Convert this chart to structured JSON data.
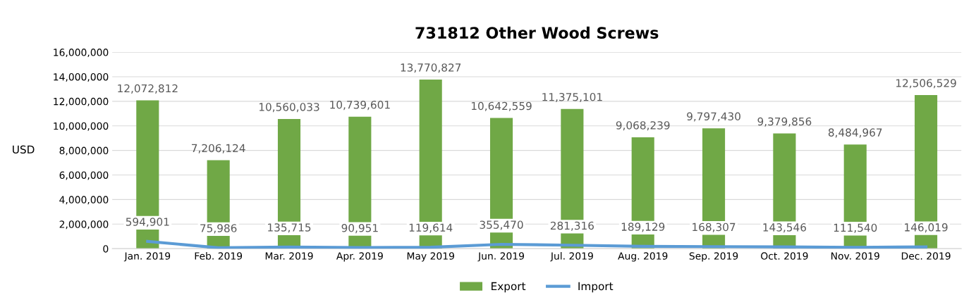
{
  "chart_data": {
    "type": "bar",
    "title": "731812 Other Wood Screws",
    "ylabel": "USD",
    "categories": [
      "Jan. 2019",
      "Feb. 2019",
      "Mar. 2019",
      "Apr. 2019",
      "May 2019",
      "Jun. 2019",
      "Jul. 2019",
      "Aug. 2019",
      "Sep. 2019",
      "Oct. 2019",
      "Nov. 2019",
      "Dec. 2019"
    ],
    "series": [
      {
        "name": "Export",
        "color": "#70a846",
        "values": [
          12072812,
          7206124,
          10560033,
          10739601,
          13770827,
          10642559,
          11375101,
          9068239,
          9797430,
          9379856,
          8484967,
          12506529
        ],
        "value_labels": [
          "12,072,812",
          "7,206,124",
          "10,560,033",
          "10,739,601",
          "13,770,827",
          "10,642,559",
          "11,375,101",
          "9,068,239",
          "9,797,430",
          "9,379,856",
          "8,484,967",
          "12,506,529"
        ]
      },
      {
        "name": "Import",
        "type": "line",
        "color": "#5b9bd5",
        "values": [
          594901,
          75986,
          135715,
          90951,
          119614,
          355470,
          281316,
          189129,
          168307,
          143546,
          111540,
          146019
        ],
        "value_labels": [
          "594,901",
          "75,986",
          "135,715",
          "90,951",
          "119,614",
          "355,470",
          "281,316",
          "189,129",
          "168,307",
          "143,546",
          "111,540",
          "146,019"
        ]
      }
    ],
    "ylim": [
      0,
      16000000
    ],
    "yticks": [
      {
        "value": 0,
        "label": "0"
      },
      {
        "value": 2000000,
        "label": "2,000,000"
      },
      {
        "value": 4000000,
        "label": "4,000,000"
      },
      {
        "value": 6000000,
        "label": "6,000,000"
      },
      {
        "value": 8000000,
        "label": "8,000,000"
      },
      {
        "value": 10000000,
        "label": "10,000,000"
      },
      {
        "value": 12000000,
        "label": "12,000,000"
      },
      {
        "value": 14000000,
        "label": "14,000,000"
      },
      {
        "value": 16000000,
        "label": "16,000,000"
      }
    ],
    "grid": "y",
    "legend": "bottom",
    "marker": "none",
    "line_style": "solid"
  }
}
